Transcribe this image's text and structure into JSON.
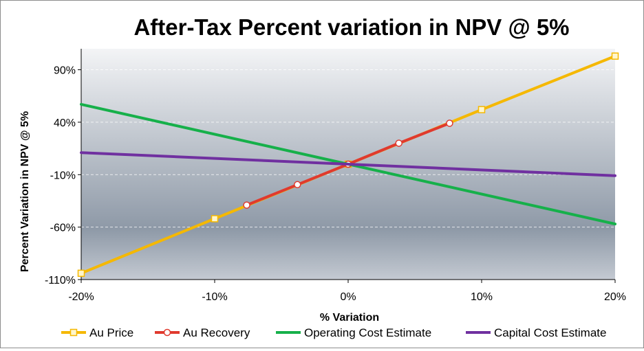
{
  "chart_data": {
    "type": "line",
    "title": "After-Tax Percent variation in NPV @ 5%",
    "xlabel": "% Variation",
    "ylabel": "Percent Variation in NPV @ 5%",
    "xlim": [
      -20,
      20
    ],
    "ylim": [
      -110,
      110
    ],
    "x_ticks": [
      -20,
      -10,
      0,
      10,
      20
    ],
    "x_tick_labels": [
      "-20%",
      "-10%",
      "0%",
      "10%",
      "20%"
    ],
    "y_ticks": [
      -110,
      -60,
      -10,
      40,
      90
    ],
    "y_tick_labels": [
      "-110%",
      "-60%",
      "-10%",
      "40%",
      "90%"
    ],
    "legend_position": "bottom",
    "series": [
      {
        "name": "Au Price",
        "color": "#f5b800",
        "marker": "square",
        "x": [
          -20,
          -10,
          0,
          10,
          20
        ],
        "y": [
          -104,
          -52,
          0,
          52,
          103
        ]
      },
      {
        "name": "Au Recovery",
        "color": "#e03a2e",
        "marker": "circle",
        "x": [
          -7.6,
          -3.8,
          0,
          3.8,
          7.6
        ],
        "y": [
          -39,
          -19.5,
          0,
          20,
          39
        ]
      },
      {
        "name": "Operating Cost Estimate",
        "color": "#16b04a",
        "marker": "none",
        "x": [
          -20,
          0,
          20
        ],
        "y": [
          57,
          0,
          -57
        ]
      },
      {
        "name": "Capital Cost Estimate",
        "color": "#7030a0",
        "marker": "none",
        "x": [
          -20,
          0,
          20
        ],
        "y": [
          11,
          0,
          -11
        ]
      }
    ]
  }
}
